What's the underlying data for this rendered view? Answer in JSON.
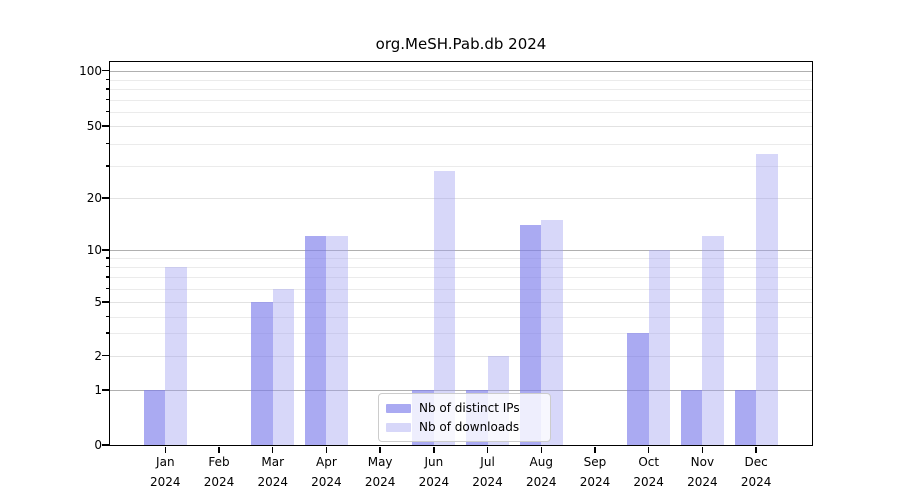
{
  "title": "org.MeSH.Pab.db 2024",
  "chart_data": {
    "type": "bar",
    "title": "org.MeSH.Pab.db 2024",
    "categories": [
      "Jan 2024",
      "Feb 2024",
      "Mar 2024",
      "Apr 2024",
      "May 2024",
      "Jun 2024",
      "Jul 2024",
      "Aug 2024",
      "Sep 2024",
      "Oct 2024",
      "Nov 2024",
      "Dec 2024"
    ],
    "x_tick_months": [
      "Jan",
      "Feb",
      "Mar",
      "Apr",
      "May",
      "Jun",
      "Jul",
      "Aug",
      "Sep",
      "Oct",
      "Nov",
      "Dec"
    ],
    "x_tick_year": "2024",
    "series": [
      {
        "name": "Nb of distinct IPs",
        "color": "rgba(125,125,235,0.65)",
        "values": [
          1,
          0,
          5,
          12,
          0,
          1,
          1,
          14,
          0,
          3,
          1,
          1
        ]
      },
      {
        "name": "Nb of downloads",
        "color": "rgba(160,160,240,0.42)",
        "values": [
          8,
          0,
          6,
          12,
          0,
          28,
          2,
          15,
          0,
          10,
          12,
          35
        ]
      }
    ],
    "xlabel": "",
    "ylabel": "",
    "ylim": [
      0,
      100
    ],
    "yscale": "log-like (symlog, 0 shown at baseline)",
    "y_tick_labels": [
      "0",
      "1",
      "2",
      "5",
      "10",
      "20",
      "50",
      "100"
    ],
    "y_ticks": [
      0,
      1,
      2,
      5,
      10,
      20,
      50,
      100
    ],
    "y_mid_gridlines": [
      2,
      5,
      20,
      50
    ],
    "y_minor_gridlines": [
      3,
      4,
      6,
      7,
      8,
      9,
      30,
      40,
      60,
      70,
      80,
      90
    ],
    "grid": true,
    "legend_position": "lower center"
  }
}
